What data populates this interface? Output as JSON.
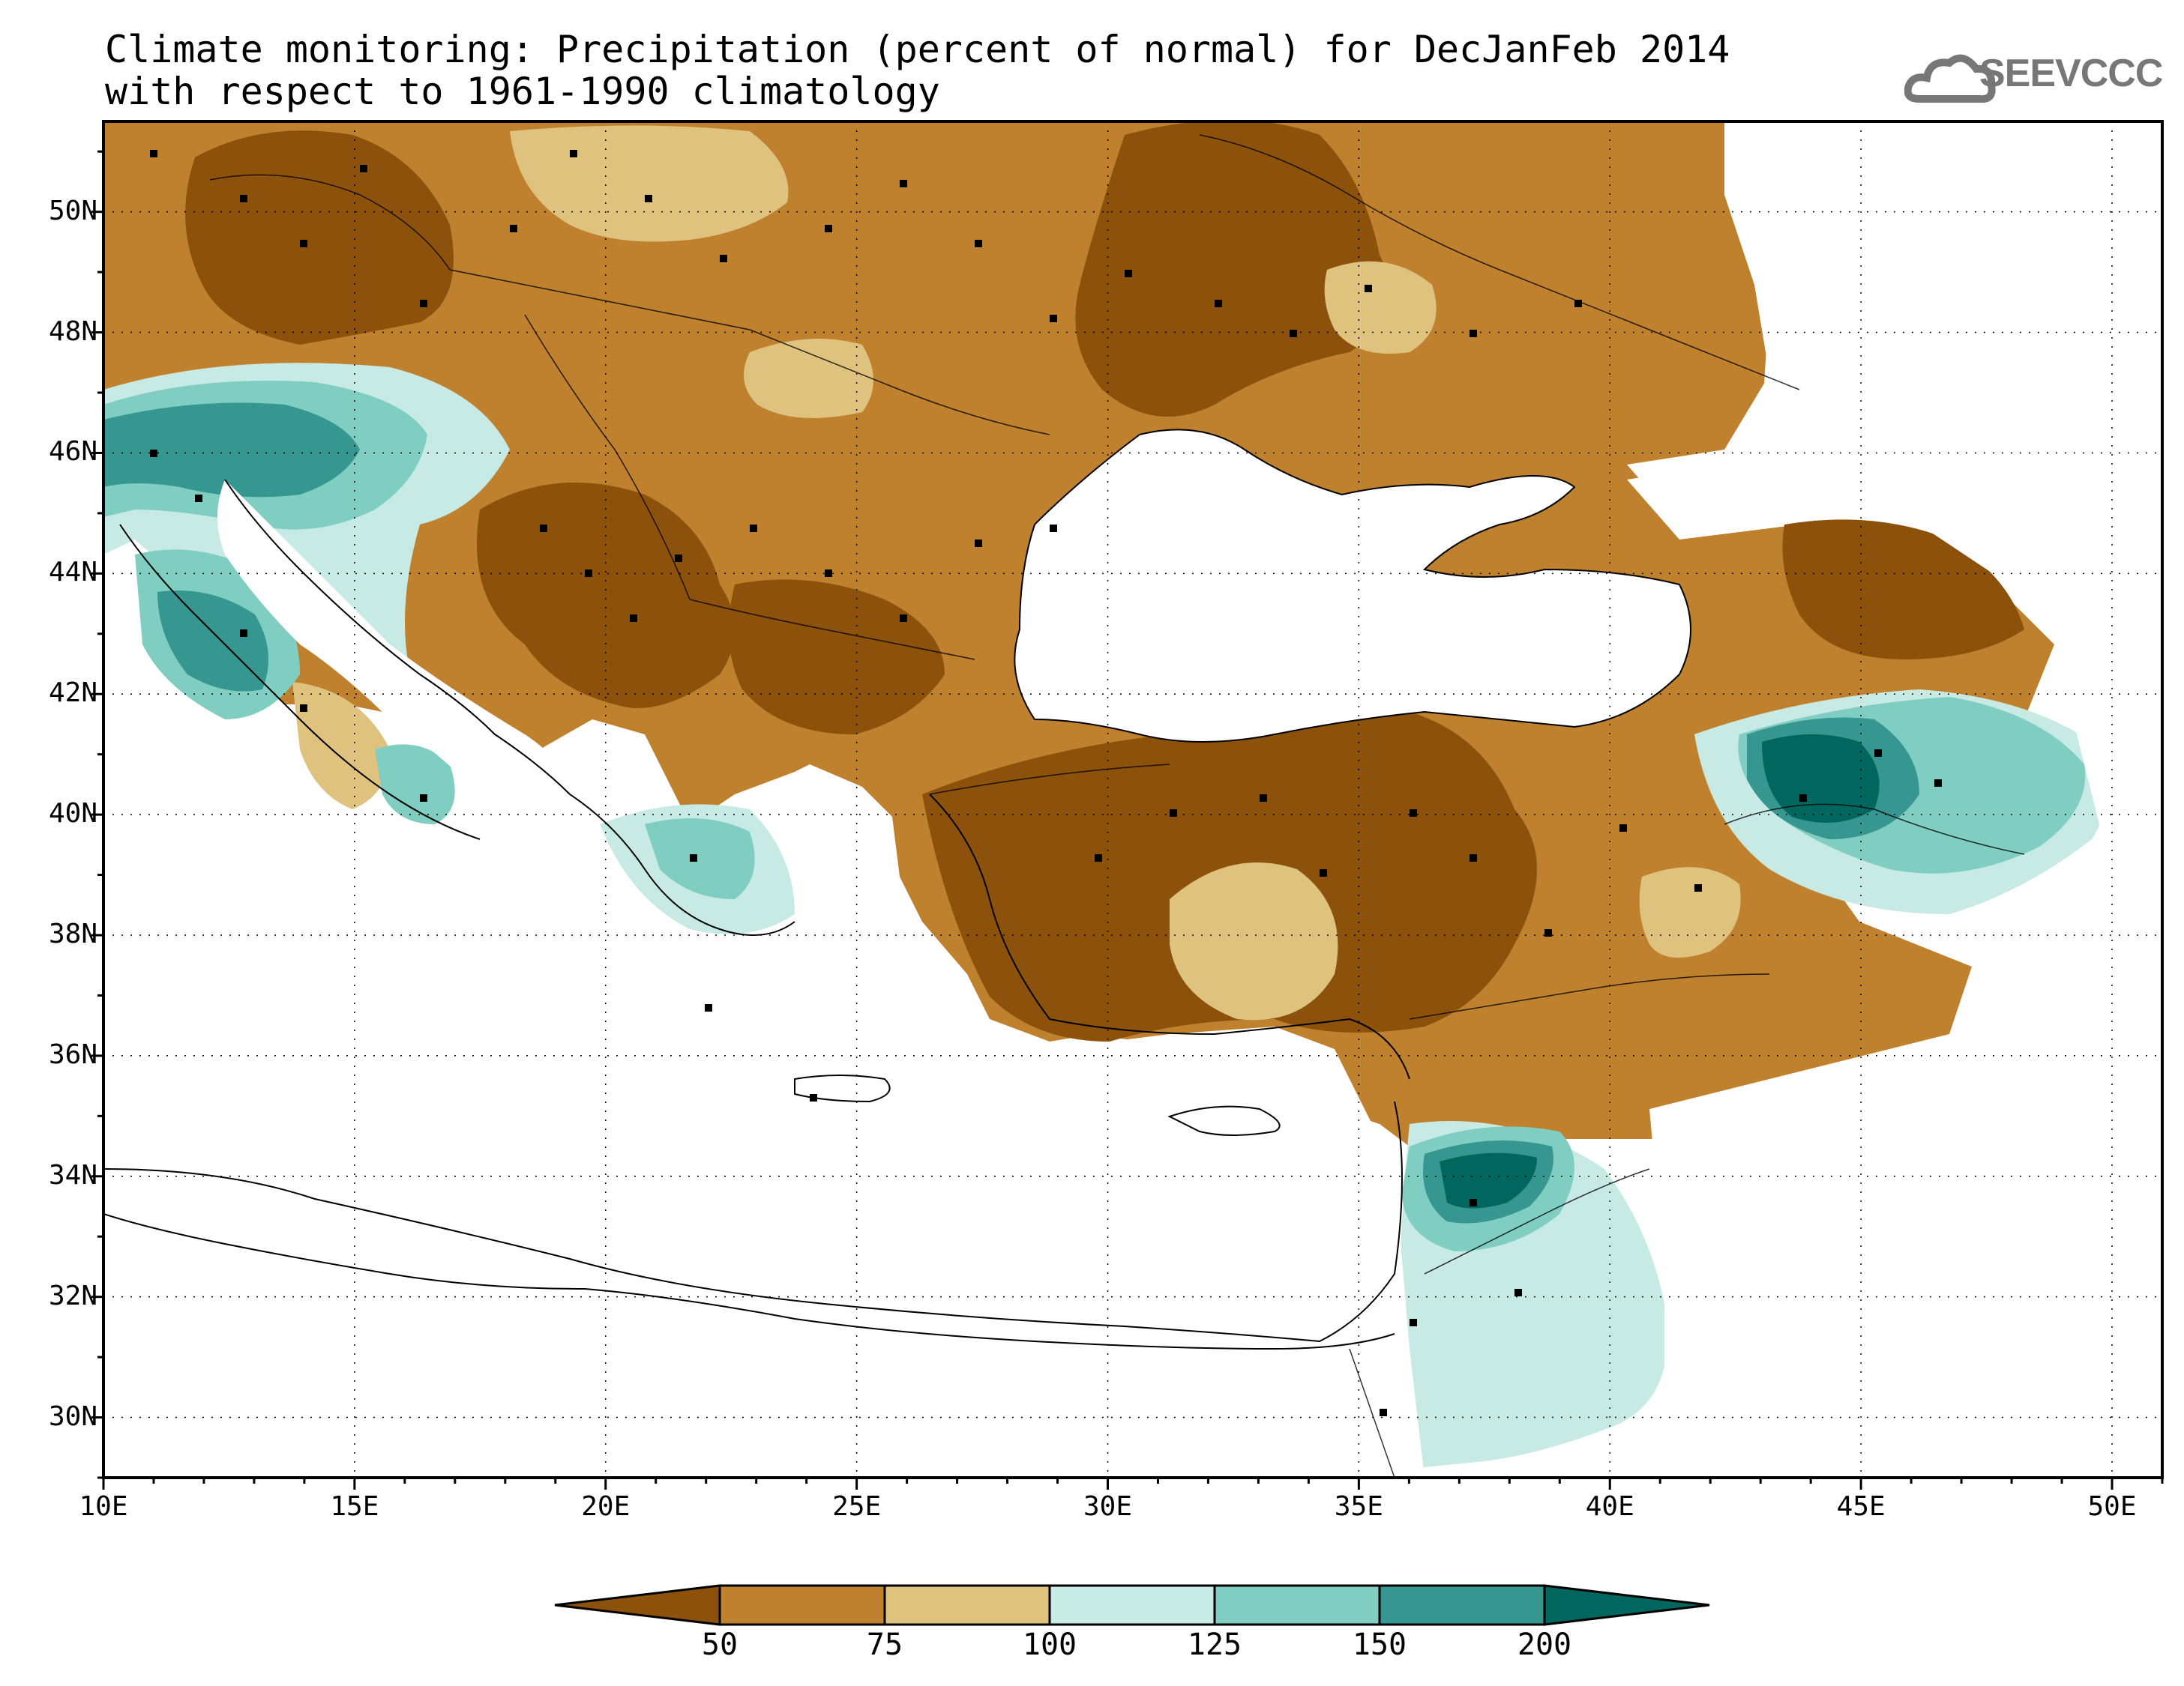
{
  "title_line1": "Climate monitoring: Precipitation (percent of normal) for DecJanFeb 2014",
  "title_line2": "with respect to 1961-1990 climatology",
  "logo_text": "SEEVCCC",
  "lat_labels": [
    "50N",
    "48N",
    "46N",
    "44N",
    "42N",
    "40N",
    "38N",
    "36N",
    "34N",
    "32N",
    "30N"
  ],
  "lon_labels": [
    "10E",
    "15E",
    "20E",
    "25E",
    "30E",
    "35E",
    "40E",
    "45E",
    "50E"
  ],
  "colorbar": {
    "labels": [
      "50",
      "75",
      "100",
      "125",
      "150",
      "200"
    ],
    "colors": [
      "#8c510a",
      "#bf812d",
      "#dfc27d",
      "#c7eae5",
      "#80cdc1",
      "#35978f",
      "#01665e"
    ]
  },
  "map_extent": {
    "lon_min": 10,
    "lon_max": 51,
    "lat_min": 29,
    "lat_max": 51.5
  },
  "grid_lon": [
    15,
    20,
    25,
    30,
    35,
    40,
    45,
    50
  ],
  "grid_lat": [
    30,
    32,
    34,
    36,
    38,
    40,
    42,
    44,
    46,
    48,
    50
  ]
}
